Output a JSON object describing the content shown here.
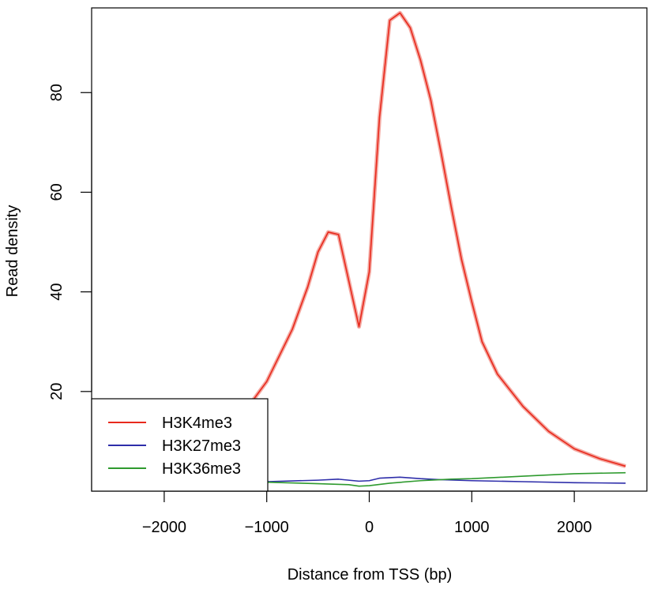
{
  "chart_data": {
    "type": "line",
    "xlabel": "Distance from TSS (bp)",
    "ylabel": "Read density",
    "xlim": [
      -2500,
      2500
    ],
    "ylim": [
      0,
      97
    ],
    "x_ticks": [
      -2000,
      -1000,
      0,
      1000,
      2000
    ],
    "x_tick_labels": [
      "−2000",
      "−1000",
      "0",
      "1000",
      "2000"
    ],
    "y_ticks": [
      20,
      40,
      60,
      80
    ],
    "y_tick_labels": [
      "20",
      "40",
      "60",
      "80"
    ],
    "legend_position": "bottom-left",
    "series": [
      {
        "name": "H3K4me3",
        "color": "#e8291c",
        "points": [
          [
            -2500,
            4.5
          ],
          [
            -2000,
            6.0
          ],
          [
            -1750,
            8.0
          ],
          [
            -1500,
            10.5
          ],
          [
            -1250,
            15.0
          ],
          [
            -1000,
            22.0
          ],
          [
            -750,
            32.5
          ],
          [
            -600,
            41.0
          ],
          [
            -500,
            48.0
          ],
          [
            -400,
            52.0
          ],
          [
            -300,
            51.5
          ],
          [
            -100,
            33.0
          ],
          [
            0,
            44.0
          ],
          [
            100,
            75.0
          ],
          [
            200,
            94.5
          ],
          [
            300,
            96.0
          ],
          [
            400,
            93.0
          ],
          [
            500,
            86.5
          ],
          [
            600,
            78.5
          ],
          [
            700,
            68.0
          ],
          [
            800,
            57.0
          ],
          [
            900,
            46.5
          ],
          [
            1000,
            38.0
          ],
          [
            1100,
            30.0
          ],
          [
            1250,
            23.5
          ],
          [
            1500,
            17.0
          ],
          [
            1750,
            12.0
          ],
          [
            2000,
            8.5
          ],
          [
            2250,
            6.5
          ],
          [
            2500,
            5.0
          ]
        ]
      },
      {
        "name": "H3K27me3",
        "color": "#2e2eaa",
        "points": [
          [
            -2500,
            1.5
          ],
          [
            -2000,
            1.6
          ],
          [
            -1500,
            1.7
          ],
          [
            -1000,
            1.9
          ],
          [
            -500,
            2.2
          ],
          [
            -300,
            2.4
          ],
          [
            -100,
            2.0
          ],
          [
            0,
            2.1
          ],
          [
            100,
            2.6
          ],
          [
            300,
            2.8
          ],
          [
            500,
            2.5
          ],
          [
            700,
            2.3
          ],
          [
            1000,
            2.1
          ],
          [
            1500,
            1.9
          ],
          [
            2000,
            1.7
          ],
          [
            2500,
            1.6
          ]
        ]
      },
      {
        "name": "H3K36me3",
        "color": "#2e9a2e",
        "points": [
          [
            -2500,
            2.3
          ],
          [
            -2000,
            2.2
          ],
          [
            -1500,
            2.0
          ],
          [
            -1000,
            1.8
          ],
          [
            -500,
            1.5
          ],
          [
            -200,
            1.3
          ],
          [
            -100,
            1.0
          ],
          [
            0,
            1.1
          ],
          [
            200,
            1.6
          ],
          [
            500,
            2.1
          ],
          [
            800,
            2.4
          ],
          [
            1000,
            2.5
          ],
          [
            1500,
            3.0
          ],
          [
            2000,
            3.5
          ],
          [
            2500,
            3.7
          ]
        ]
      }
    ]
  }
}
